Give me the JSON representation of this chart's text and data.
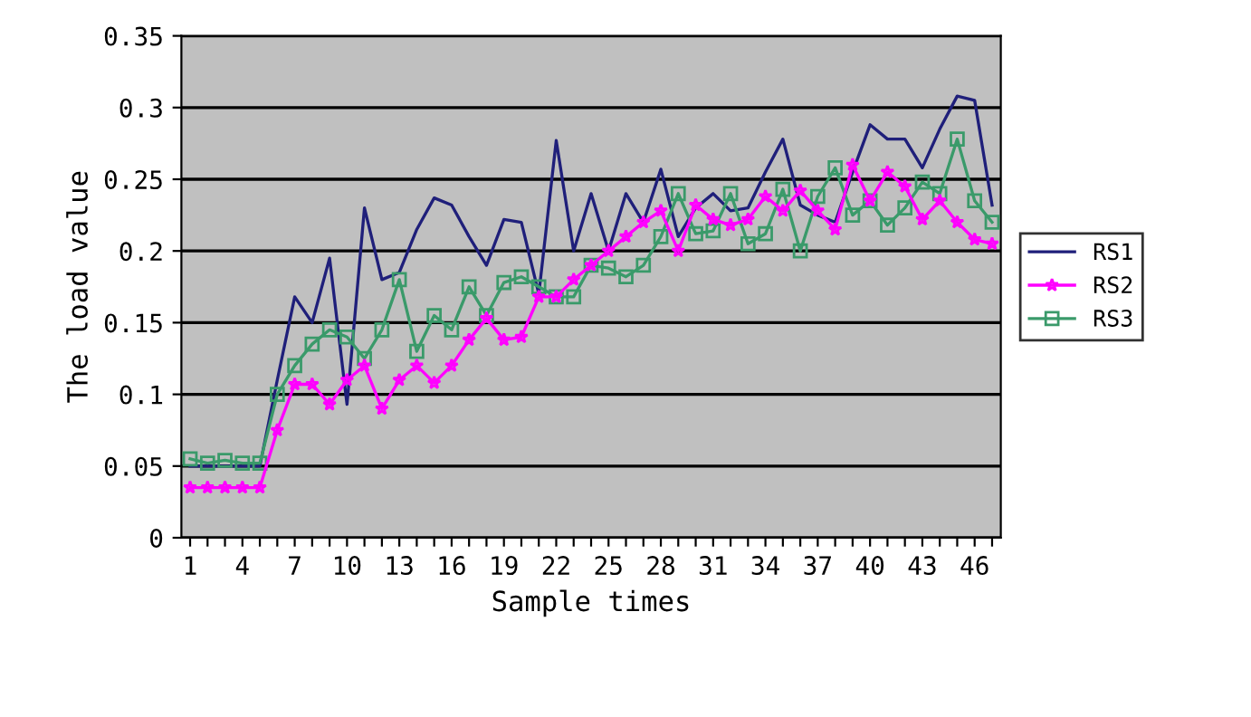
{
  "chart_data": {
    "type": "line",
    "xlabel": "Sample times",
    "ylabel": "The load value",
    "categories": [
      "1",
      null,
      null,
      "4",
      null,
      null,
      "7",
      null,
      null,
      "10",
      null,
      null,
      "13",
      null,
      null,
      "16",
      null,
      null,
      "19",
      null,
      null,
      "22",
      null,
      null,
      "25",
      null,
      null,
      "28",
      null,
      null,
      "31",
      null,
      null,
      "34",
      null,
      null,
      "37",
      null,
      null,
      "40",
      null,
      null,
      "43",
      null,
      null,
      "46",
      null
    ],
    "series": [
      {
        "name": "RS1",
        "color": "#1f1f7a",
        "marker": "none",
        "values": [
          0.05,
          0.05,
          0.05,
          0.05,
          0.05,
          0.11,
          0.168,
          0.15,
          0.195,
          0.093,
          0.23,
          0.18,
          0.185,
          0.215,
          0.237,
          0.232,
          0.21,
          0.19,
          0.222,
          0.22,
          0.17,
          0.277,
          0.2,
          0.24,
          0.2,
          0.24,
          0.22,
          0.257,
          0.21,
          0.23,
          0.24,
          0.228,
          0.23,
          0.255,
          0.278,
          0.232,
          0.225,
          0.22,
          0.255,
          0.288,
          0.278,
          0.278,
          0.258,
          0.285,
          0.308,
          0.305,
          0.232
        ]
      },
      {
        "name": "RS2",
        "color": "#ff00ff",
        "marker": "star",
        "values": [
          0.035,
          0.035,
          0.035,
          0.035,
          0.035,
          0.075,
          0.107,
          0.107,
          0.093,
          0.11,
          0.12,
          0.09,
          0.11,
          0.12,
          0.108,
          0.12,
          0.138,
          0.153,
          0.138,
          0.14,
          0.168,
          0.168,
          0.18,
          0.19,
          0.2,
          0.21,
          0.22,
          0.228,
          0.2,
          0.232,
          0.222,
          0.218,
          0.222,
          0.238,
          0.228,
          0.242,
          0.228,
          0.215,
          0.26,
          0.235,
          0.255,
          0.245,
          0.222,
          0.235,
          0.22,
          0.208,
          0.205
        ]
      },
      {
        "name": "RS3",
        "color": "#3a9a6a",
        "marker": "square",
        "values": [
          0.055,
          0.052,
          0.054,
          0.052,
          0.052,
          0.1,
          0.12,
          0.135,
          0.145,
          0.14,
          0.125,
          0.145,
          0.18,
          0.13,
          0.155,
          0.145,
          0.175,
          0.155,
          0.178,
          0.182,
          0.175,
          0.168,
          0.168,
          0.19,
          0.188,
          0.182,
          0.19,
          0.21,
          0.24,
          0.212,
          0.214,
          0.24,
          0.205,
          0.212,
          0.243,
          0.2,
          0.238,
          0.258,
          0.225,
          0.235,
          0.218,
          0.23,
          0.248,
          0.24,
          0.278,
          0.235,
          0.22
        ]
      }
    ],
    "ylim": [
      0,
      0.35
    ],
    "yticks": [
      0,
      {
        "value": 0.05,
        "label": "0.05"
      },
      {
        "value": 0.1,
        "label": "0.1"
      },
      {
        "value": 0.15,
        "label": "0.15"
      },
      {
        "value": 0.2,
        "label": "0.2"
      },
      {
        "value": 0.25,
        "label": "0.25"
      },
      {
        "value": 0.3,
        "label": "0.3"
      },
      {
        "value": 0.35,
        "label": "0.35"
      }
    ],
    "grid": "y",
    "legend": "right"
  }
}
